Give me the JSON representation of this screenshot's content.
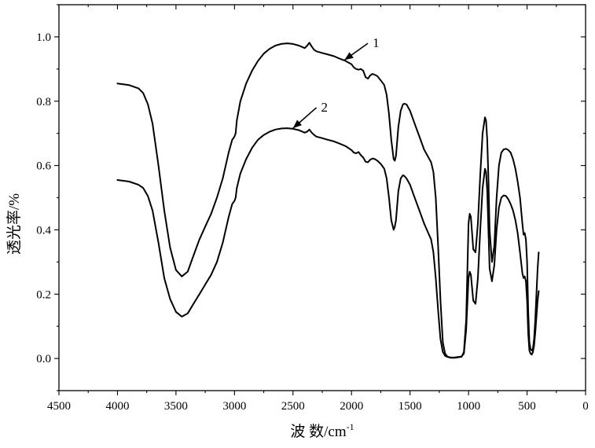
{
  "chart_data": {
    "type": "line",
    "title": "",
    "xlabel_main": "波 数/cm",
    "xlabel_sup": "-1",
    "ylabel": "透光率/%",
    "xlim": [
      4500,
      0
    ],
    "ylim": [
      -0.1,
      1.1
    ],
    "x_ticks": [
      4500,
      4000,
      3500,
      3000,
      2500,
      2000,
      1500,
      1000,
      500,
      0
    ],
    "y_ticks": [
      0.0,
      0.2,
      0.4,
      0.6,
      0.8,
      1.0
    ],
    "x_tick_labels": [
      "4500",
      "4000",
      "3500",
      "3000",
      "2500",
      "2000",
      "1500",
      "1000",
      "500",
      "0"
    ],
    "y_tick_labels": [
      "0.0",
      "0.2",
      "0.4",
      "0.6",
      "0.8",
      "1.0"
    ],
    "grid": false,
    "series": [
      {
        "name": "1",
        "x": [
          4000,
          3900,
          3820,
          3780,
          3740,
          3700,
          3650,
          3600,
          3550,
          3500,
          3450,
          3400,
          3350,
          3300,
          3250,
          3200,
          3150,
          3100,
          3050,
          3020,
          3000,
          2990,
          2980,
          2950,
          2900,
          2850,
          2800,
          2750,
          2700,
          2650,
          2600,
          2550,
          2500,
          2450,
          2400,
          2380,
          2360,
          2340,
          2320,
          2300,
          2250,
          2200,
          2150,
          2100,
          2050,
          2000,
          1980,
          1960,
          1940,
          1920,
          1900,
          1880,
          1860,
          1840,
          1820,
          1800,
          1780,
          1750,
          1720,
          1700,
          1680,
          1660,
          1640,
          1630,
          1620,
          1600,
          1580,
          1560,
          1550,
          1530,
          1500,
          1470,
          1440,
          1410,
          1380,
          1350,
          1320,
          1300,
          1280,
          1260,
          1240,
          1220,
          1200,
          1180,
          1150,
          1120,
          1100,
          1080,
          1060,
          1040,
          1020,
          1000,
          990,
          980,
          960,
          940,
          920,
          900,
          880,
          860,
          850,
          840,
          830,
          820,
          800,
          780,
          760,
          740,
          720,
          700,
          680,
          660,
          640,
          620,
          600,
          580,
          560,
          540,
          530,
          520,
          510,
          500,
          490,
          480,
          470,
          460,
          450,
          440,
          430,
          420,
          410,
          400
        ],
        "y": [
          0.855,
          0.85,
          0.84,
          0.825,
          0.79,
          0.73,
          0.6,
          0.46,
          0.345,
          0.275,
          0.255,
          0.27,
          0.32,
          0.37,
          0.41,
          0.45,
          0.5,
          0.56,
          0.64,
          0.68,
          0.69,
          0.7,
          0.74,
          0.8,
          0.855,
          0.895,
          0.925,
          0.948,
          0.963,
          0.973,
          0.978,
          0.98,
          0.978,
          0.973,
          0.965,
          0.972,
          0.982,
          0.97,
          0.96,
          0.955,
          0.95,
          0.945,
          0.94,
          0.932,
          0.925,
          0.915,
          0.905,
          0.9,
          0.898,
          0.9,
          0.895,
          0.875,
          0.87,
          0.88,
          0.885,
          0.882,
          0.878,
          0.865,
          0.85,
          0.82,
          0.76,
          0.68,
          0.62,
          0.615,
          0.63,
          0.72,
          0.77,
          0.79,
          0.792,
          0.79,
          0.77,
          0.74,
          0.71,
          0.68,
          0.65,
          0.63,
          0.61,
          0.58,
          0.5,
          0.35,
          0.18,
          0.05,
          0.015,
          0.005,
          0.002,
          0.002,
          0.003,
          0.004,
          0.005,
          0.02,
          0.12,
          0.42,
          0.45,
          0.44,
          0.34,
          0.33,
          0.42,
          0.57,
          0.7,
          0.75,
          0.74,
          0.68,
          0.56,
          0.4,
          0.3,
          0.35,
          0.5,
          0.6,
          0.64,
          0.65,
          0.652,
          0.648,
          0.64,
          0.62,
          0.59,
          0.55,
          0.5,
          0.42,
          0.385,
          0.39,
          0.37,
          0.3,
          0.15,
          0.05,
          0.03,
          0.025,
          0.03,
          0.06,
          0.12,
          0.2,
          0.28,
          0.33
        ]
      },
      {
        "name": "2",
        "x": [
          4000,
          3900,
          3820,
          3780,
          3740,
          3700,
          3650,
          3600,
          3550,
          3500,
          3450,
          3400,
          3350,
          3300,
          3250,
          3200,
          3150,
          3100,
          3050,
          3020,
          3000,
          2990,
          2980,
          2950,
          2900,
          2850,
          2800,
          2750,
          2700,
          2650,
          2600,
          2550,
          2500,
          2450,
          2400,
          2380,
          2360,
          2340,
          2320,
          2300,
          2250,
          2200,
          2150,
          2100,
          2050,
          2000,
          1980,
          1960,
          1940,
          1920,
          1900,
          1880,
          1860,
          1840,
          1820,
          1800,
          1780,
          1750,
          1720,
          1700,
          1680,
          1660,
          1640,
          1630,
          1620,
          1600,
          1580,
          1560,
          1550,
          1530,
          1500,
          1470,
          1440,
          1410,
          1380,
          1350,
          1320,
          1300,
          1280,
          1260,
          1240,
          1220,
          1200,
          1180,
          1150,
          1120,
          1100,
          1080,
          1060,
          1040,
          1020,
          1000,
          990,
          980,
          960,
          940,
          920,
          900,
          880,
          860,
          850,
          840,
          830,
          820,
          800,
          780,
          760,
          740,
          720,
          700,
          680,
          660,
          640,
          620,
          600,
          580,
          560,
          540,
          530,
          520,
          510,
          500,
          490,
          480,
          470,
          460,
          450,
          440,
          430,
          420,
          410,
          400
        ],
        "y": [
          0.555,
          0.55,
          0.54,
          0.53,
          0.505,
          0.46,
          0.36,
          0.25,
          0.185,
          0.145,
          0.13,
          0.14,
          0.17,
          0.2,
          0.23,
          0.26,
          0.3,
          0.36,
          0.44,
          0.48,
          0.49,
          0.5,
          0.53,
          0.575,
          0.62,
          0.655,
          0.68,
          0.695,
          0.705,
          0.712,
          0.715,
          0.716,
          0.714,
          0.71,
          0.702,
          0.705,
          0.712,
          0.702,
          0.695,
          0.69,
          0.685,
          0.68,
          0.675,
          0.668,
          0.66,
          0.648,
          0.64,
          0.638,
          0.642,
          0.632,
          0.625,
          0.612,
          0.61,
          0.618,
          0.622,
          0.62,
          0.615,
          0.605,
          0.59,
          0.56,
          0.5,
          0.43,
          0.4,
          0.41,
          0.43,
          0.52,
          0.56,
          0.57,
          0.568,
          0.56,
          0.54,
          0.51,
          0.48,
          0.45,
          0.42,
          0.395,
          0.37,
          0.33,
          0.25,
          0.15,
          0.06,
          0.02,
          0.008,
          0.005,
          0.003,
          0.003,
          0.004,
          0.005,
          0.006,
          0.015,
          0.09,
          0.25,
          0.27,
          0.26,
          0.18,
          0.17,
          0.25,
          0.4,
          0.53,
          0.59,
          0.58,
          0.52,
          0.4,
          0.28,
          0.24,
          0.29,
          0.4,
          0.47,
          0.5,
          0.507,
          0.505,
          0.495,
          0.48,
          0.46,
          0.43,
          0.39,
          0.33,
          0.265,
          0.25,
          0.255,
          0.24,
          0.18,
          0.08,
          0.025,
          0.015,
          0.012,
          0.02,
          0.04,
          0.08,
          0.13,
          0.18,
          0.21
        ]
      }
    ],
    "annotations": [
      {
        "label": "1",
        "arrow_tip": [
          2060,
          0.928
        ],
        "arrow_tail": [
          1860,
          0.98
        ]
      },
      {
        "label": "2",
        "arrow_tip": [
          2500,
          0.716
        ],
        "arrow_tail": [
          2300,
          0.78
        ]
      }
    ]
  }
}
